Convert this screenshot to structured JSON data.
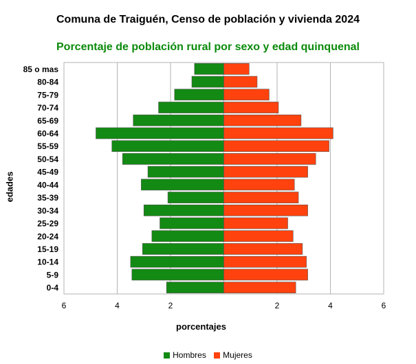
{
  "chart_data": {
    "type": "bar",
    "orientation": "horizontal",
    "title": "Comuna de Traiguén, Censo de población y vivienda 2024",
    "subtitle": "Porcentaje de población rural por sexo y edad quinquenal",
    "xlabel": "porcentajes",
    "ylabel": "edades",
    "categories": [
      "85 o mas",
      "80-84",
      "75-79",
      "70-74",
      "65-69",
      "60-64",
      "55-59",
      "50-54",
      "45-49",
      "40-44",
      "35-39",
      "30-34",
      "25-29",
      "20-24",
      "15-19",
      "10-14",
      "5-9",
      "0-4"
    ],
    "series": [
      {
        "name": "Hombres",
        "color": "#138a13",
        "values": [
          1.1,
          1.2,
          1.85,
          2.45,
          3.4,
          4.8,
          4.2,
          3.8,
          2.85,
          3.1,
          2.1,
          3.0,
          2.4,
          2.7,
          3.05,
          3.5,
          3.45,
          2.15
        ]
      },
      {
        "name": "Mujeres",
        "color": "#ff420e",
        "values": [
          0.95,
          1.25,
          1.7,
          2.05,
          2.9,
          4.1,
          3.95,
          3.45,
          3.15,
          2.65,
          2.8,
          3.15,
          2.4,
          2.6,
          2.95,
          3.1,
          3.15,
          2.7
        ]
      }
    ],
    "xlim": [
      -6,
      6
    ],
    "xticks": [
      -6,
      -4,
      -2,
      0,
      2,
      4,
      6
    ],
    "xtick_labels": [
      "6",
      "4",
      "2",
      "",
      "2",
      "4",
      "6"
    ],
    "grid": true,
    "legend_position": "bottom"
  }
}
